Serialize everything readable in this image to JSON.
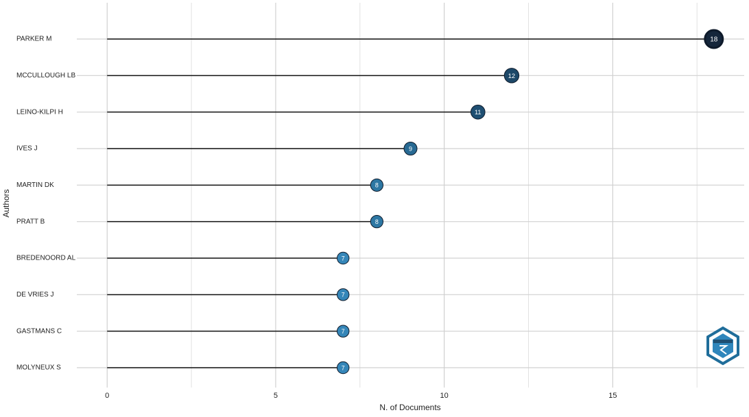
{
  "chart_data": {
    "type": "lollipop",
    "categories": [
      "PARKER M",
      "MCCULLOUGH LB",
      "LEINO-KILPI H",
      "IVES J",
      "MARTIN DK",
      "PRATT B",
      "BREDENOORD AL",
      "DE VRIES J",
      "GASTMANS C",
      "MOLYNEUX S"
    ],
    "values": [
      18,
      12,
      11,
      9,
      8,
      8,
      7,
      7,
      7,
      7
    ],
    "colors": [
      "#15263b",
      "#1d4868",
      "#1f4f72",
      "#286a93",
      "#2d77a3",
      "#2d77a3",
      "#3586b8",
      "#3586b8",
      "#3586b8",
      "#3586b8"
    ],
    "xlabel": "N. of Documents",
    "ylabel": "Authors",
    "xlim": [
      -0.9,
      18.9
    ],
    "xticks": [
      0,
      5,
      10,
      15
    ],
    "minor_xticks": [
      2.5,
      7.5,
      12.5,
      17.5
    ],
    "grid": true
  }
}
